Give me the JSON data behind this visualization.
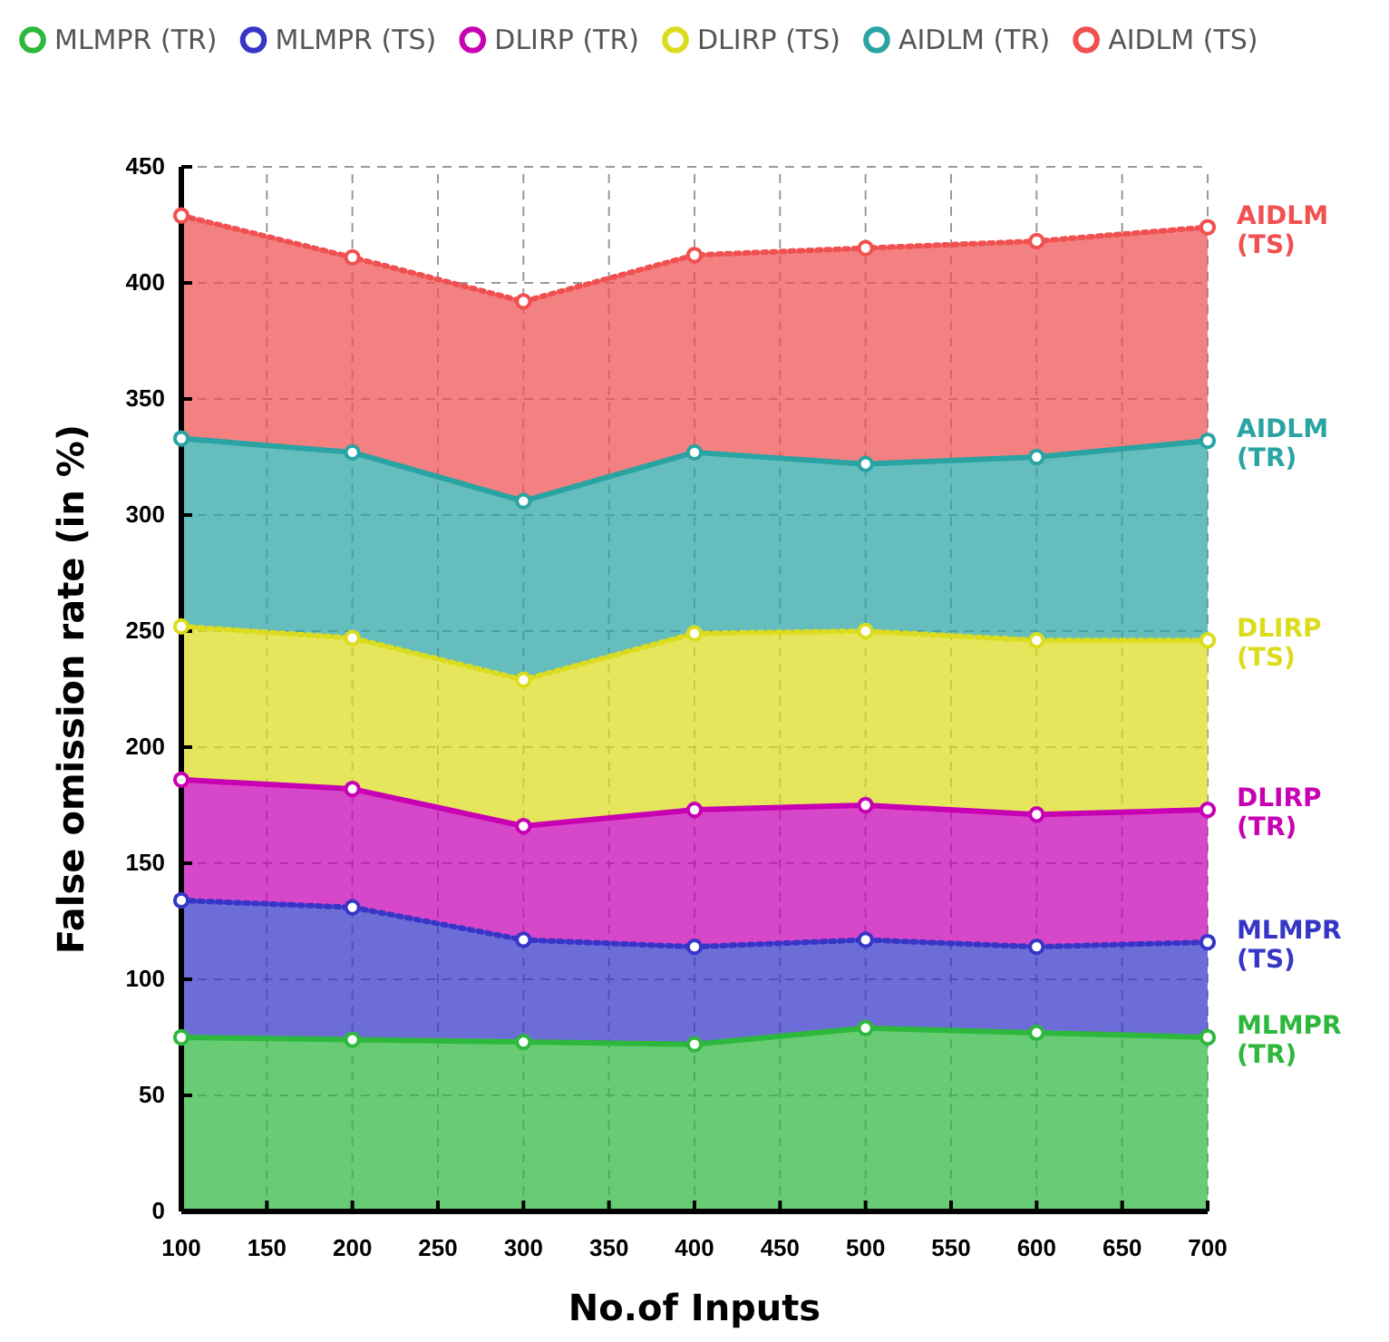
{
  "chart_data": {
    "type": "area",
    "stacked": true,
    "xlabel": "No.of Inputs",
    "ylabel": "False omission rate (in %)",
    "x": [
      100,
      200,
      300,
      400,
      500,
      600,
      700
    ],
    "xlim": [
      100,
      700
    ],
    "xticks": [
      100,
      150,
      200,
      250,
      300,
      350,
      400,
      450,
      500,
      550,
      600,
      650,
      700
    ],
    "ylim": [
      0,
      450
    ],
    "yticks": [
      0,
      50,
      100,
      150,
      200,
      250,
      300,
      350,
      400,
      450
    ],
    "grid": true,
    "legend": "top",
    "marker": "circle",
    "series": [
      {
        "name": "MLMPR (TR)",
        "color": "#2db83d",
        "line_style": "solid",
        "values": [
          75,
          74,
          73,
          72,
          79,
          77,
          75
        ]
      },
      {
        "name": "MLMPR (TS)",
        "color": "#3535c8",
        "line_style": "dotted",
        "values": [
          59,
          57,
          44,
          42,
          38,
          37,
          41
        ]
      },
      {
        "name": "DLIRP (TR)",
        "color": "#c800b4",
        "line_style": "solid",
        "values": [
          52,
          51,
          49,
          59,
          58,
          57,
          57
        ]
      },
      {
        "name": "DLIRP (TS)",
        "color": "#dcdc1e",
        "line_style": "dotted",
        "values": [
          66,
          65,
          63,
          76,
          75,
          75,
          73
        ]
      },
      {
        "name": "AIDLM (TR)",
        "color": "#2aa3a3",
        "line_style": "solid",
        "values": [
          81,
          80,
          77,
          78,
          72,
          79,
          86
        ]
      },
      {
        "name": "AIDLM (TS)",
        "color": "#f05050",
        "line_style": "dotted",
        "values": [
          96,
          84,
          86,
          85,
          93,
          93,
          92
        ]
      }
    ]
  }
}
